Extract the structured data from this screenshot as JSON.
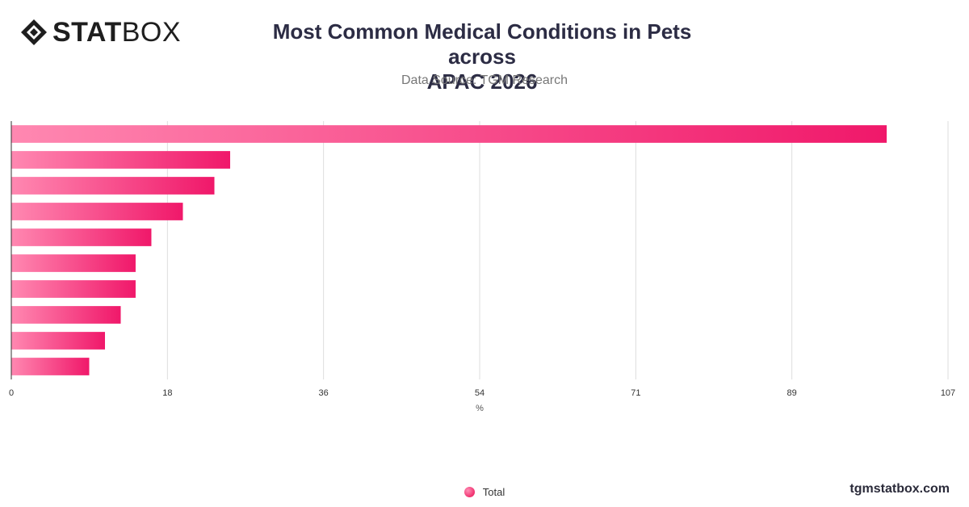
{
  "brand": {
    "logo_bold": "STAT",
    "logo_light": "BOX",
    "footer": "tgmstatbox.com"
  },
  "colors": {
    "bar_start": "#ff88b1",
    "bar_end": "#f0186a",
    "grid": "#dddddd",
    "axis": "#333333"
  },
  "chart_data": {
    "type": "bar",
    "orientation": "horizontal",
    "title": "Most Common Medical Conditions in Pets across APAC 2026",
    "title_lines": [
      "Most Common Medical Conditions in Pets across",
      "APAC 2026"
    ],
    "subtitle": "Data Source: TGM Research",
    "xlabel": "%",
    "ylabel": "",
    "xlim": [
      0,
      107
    ],
    "xticks": [
      "0",
      "18",
      "36",
      "54",
      "71",
      "89",
      "107"
    ],
    "grid": true,
    "legend_position": "bottom",
    "series": [
      {
        "name": "Total",
        "values": [
          100,
          25,
          23.2,
          19.6,
          16,
          14.2,
          14.2,
          12.5,
          10.7,
          8.9
        ]
      }
    ]
  }
}
